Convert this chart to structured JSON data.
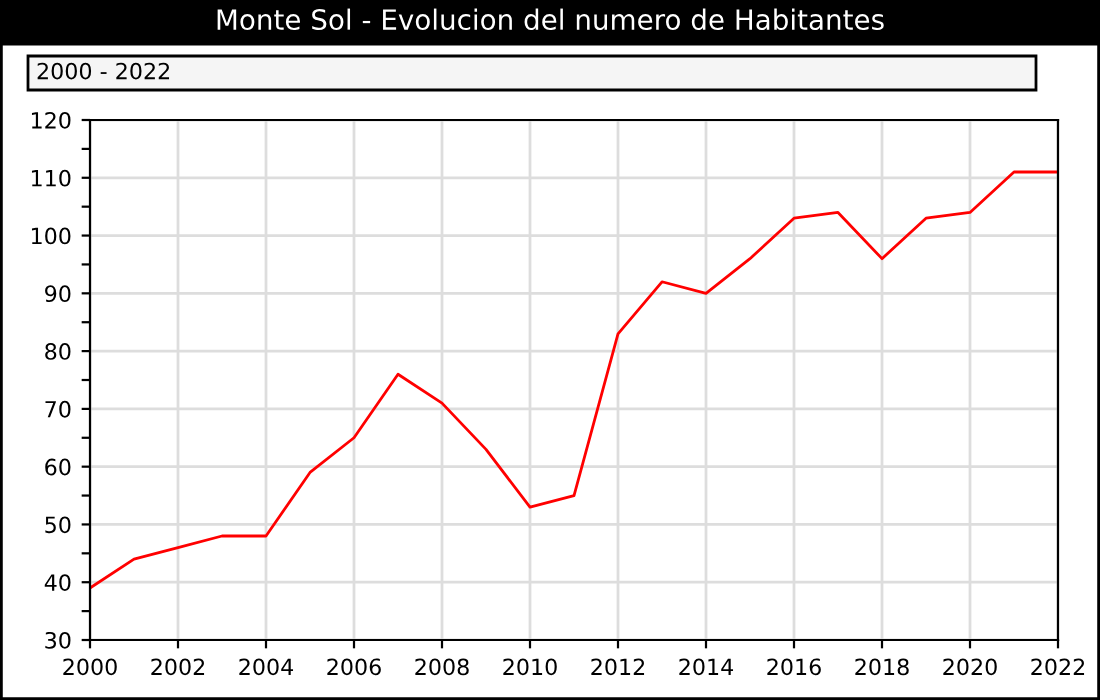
{
  "chart_data": {
    "type": "line",
    "title": "Monte Sol - Evolucion del numero de Habitantes",
    "subtitle": "2000 - 2022",
    "x": [
      2000,
      2001,
      2002,
      2003,
      2004,
      2005,
      2006,
      2007,
      2008,
      2009,
      2010,
      2011,
      2012,
      2013,
      2014,
      2015,
      2016,
      2017,
      2018,
      2019,
      2020,
      2021,
      2022
    ],
    "series": [
      {
        "color": "#ff0000",
        "values": [
          39,
          44,
          46,
          48,
          48,
          59,
          65,
          76,
          71,
          63,
          53,
          55,
          83,
          92,
          90,
          96,
          103,
          104,
          96,
          103,
          104,
          111,
          111
        ]
      }
    ],
    "xlim": [
      2000,
      2022
    ],
    "xticks": [
      2000,
      2002,
      2004,
      2006,
      2008,
      2010,
      2012,
      2014,
      2016,
      2018,
      2020,
      2022
    ],
    "ylim": [
      30,
      120
    ],
    "yticks": [
      30,
      {
        "value": 35,
        "label": null
      },
      40,
      {
        "value": 45,
        "label": null
      },
      50,
      {
        "value": 55,
        "label": null
      },
      60,
      {
        "value": 65,
        "label": null
      },
      70,
      {
        "value": 75,
        "label": null
      },
      80,
      {
        "value": 85,
        "label": null
      },
      90,
      {
        "value": 95,
        "label": null
      },
      100,
      {
        "value": 105,
        "label": null
      },
      110,
      {
        "value": 115,
        "label": null
      },
      120
    ],
    "grid": true,
    "marker": "none",
    "line_style": "solid"
  }
}
